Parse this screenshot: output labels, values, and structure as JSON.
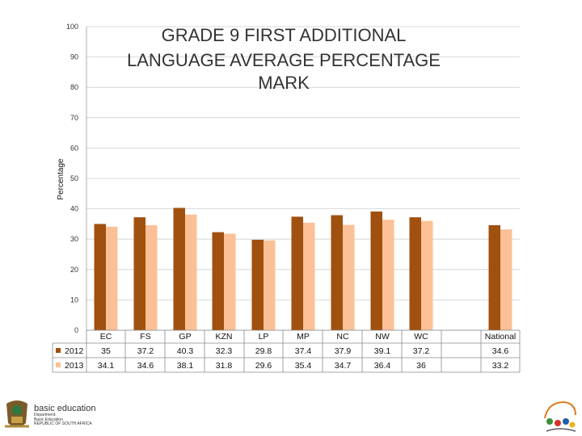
{
  "chart_data": {
    "type": "bar",
    "title_lines": [
      "GRADE 9 FIRST ADDITIONAL",
      "LANGUAGE AVERAGE PERCENTAGE",
      "MARK"
    ],
    "ylabel": "Percentage",
    "ylim": [
      0,
      100
    ],
    "yticks": [
      "0",
      "10",
      "20",
      "30",
      "40",
      "50",
      "60",
      "70",
      "80",
      "90",
      "100"
    ],
    "grid": true,
    "categories": [
      "EC",
      "FS",
      "GP",
      "KZN",
      "LP",
      "MP",
      "NC",
      "NW",
      "WC",
      "National"
    ],
    "series": [
      {
        "name": "2012",
        "color": "#a0500f",
        "values": [
          35,
          37.2,
          40.3,
          32.3,
          29.8,
          37.4,
          37.9,
          39.1,
          37.2,
          34.6
        ],
        "labels": [
          "35",
          "37.2",
          "40.3",
          "32.3",
          "29.8",
          "37.4",
          "37.9",
          "39.1",
          "37.2",
          "34.6"
        ]
      },
      {
        "name": "2013",
        "color": "#fcc096",
        "values": [
          34.1,
          34.6,
          38.1,
          31.8,
          29.6,
          35.4,
          34.7,
          36.4,
          36,
          33.2
        ],
        "labels": [
          "34.1",
          "34.6",
          "38.1",
          "31.8",
          "29.6",
          "35.4",
          "34.7",
          "36.4",
          "36",
          "33.2"
        ]
      }
    ],
    "legend": "table"
  },
  "footer": {
    "brand": "basic education",
    "sub_lines": [
      "Department:",
      "Basic Education",
      "REPUBLIC OF SOUTH AFRICA"
    ]
  }
}
